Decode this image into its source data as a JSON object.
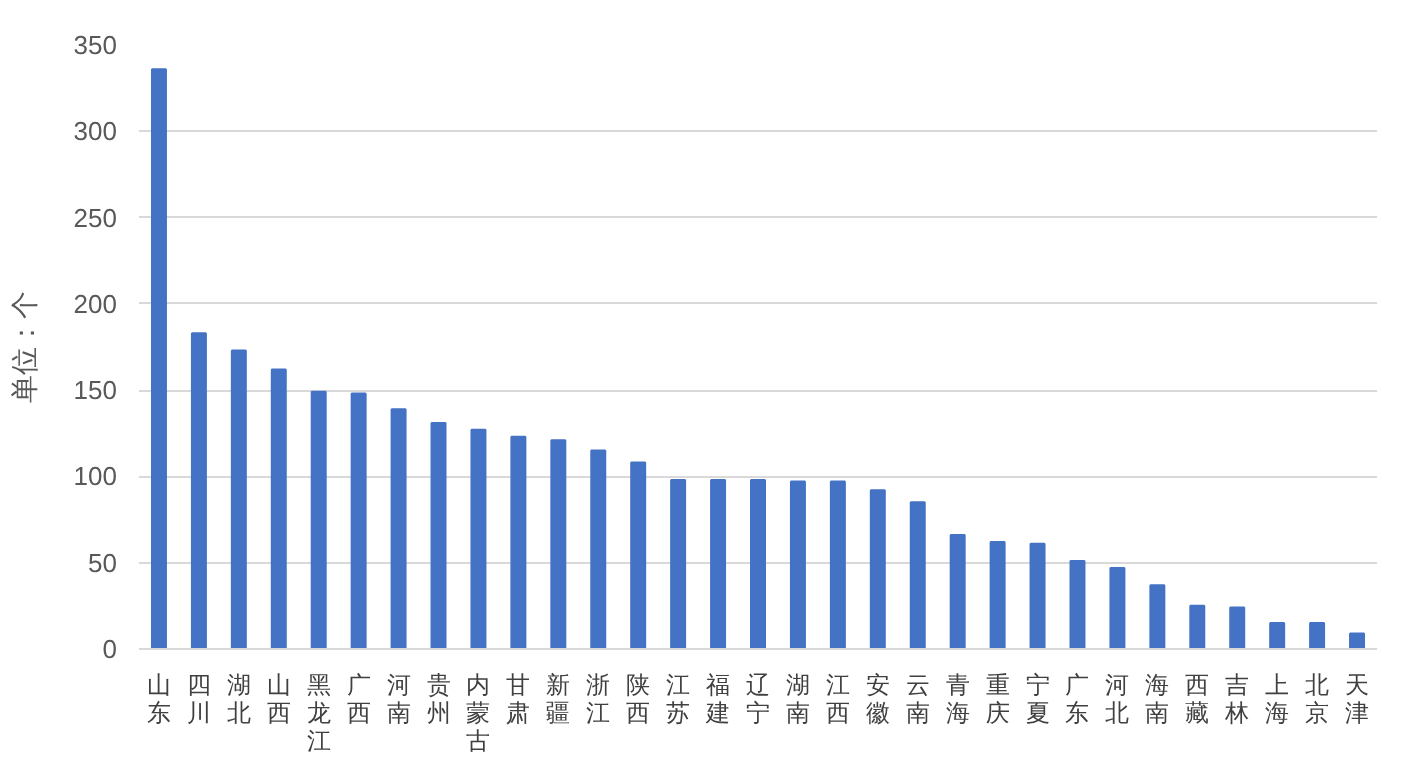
{
  "chart_data": {
    "type": "bar",
    "ylabel": "单位：个",
    "categories": [
      "山东",
      "四川",
      "湖北",
      "山西",
      "黑龙江",
      "广西",
      "河南",
      "贵州",
      "内蒙古",
      "甘肃",
      "新疆",
      "浙江",
      "陕西",
      "江苏",
      "福建",
      "辽宁",
      "湖南",
      "江西",
      "安徽",
      "云南",
      "青海",
      "重庆",
      "宁夏",
      "广东",
      "河北",
      "海南",
      "西藏",
      "吉林",
      "上海",
      "北京",
      "天津"
    ],
    "values": [
      336,
      183,
      173,
      162,
      149,
      148,
      139,
      131,
      127,
      123,
      121,
      115,
      108,
      98,
      98,
      98,
      97,
      97,
      92,
      85,
      66,
      62,
      61,
      51,
      47,
      37,
      25,
      24,
      15,
      15,
      9
    ],
    "color": "#4472c4",
    "ylim": [
      0,
      350
    ],
    "yticks": [
      0,
      50,
      100,
      150,
      200,
      250,
      300,
      350
    ],
    "grid": "y"
  }
}
